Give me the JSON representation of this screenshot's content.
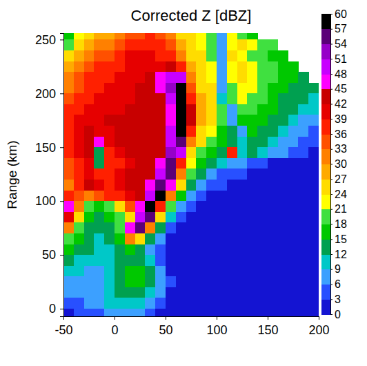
{
  "chart_data": {
    "type": "heatmap",
    "title": "Corrected Z [dBZ]",
    "y_label": "Range (km)",
    "x": [
      -45,
      -35,
      -25,
      -15,
      -5,
      5,
      15,
      25,
      35,
      45,
      55,
      65,
      75,
      85,
      95,
      105,
      115,
      125,
      135,
      145,
      155,
      165,
      175,
      185,
      195
    ],
    "y": [
      255,
      245,
      235,
      225,
      215,
      205,
      195,
      185,
      175,
      165,
      155,
      145,
      135,
      125,
      115,
      105,
      95,
      85,
      75,
      65,
      55,
      45,
      35,
      25,
      15,
      5,
      -5
    ],
    "values": [
      [
        15,
        22,
        25,
        27,
        28,
        30,
        33,
        35,
        36,
        35,
        30,
        26,
        24,
        22,
        20,
        6,
        22,
        20,
        16,
        null,
        null,
        null,
        null,
        null,
        null
      ],
      [
        20,
        24,
        27,
        30,
        30,
        33,
        36,
        38,
        38,
        36,
        33,
        28,
        24,
        22,
        20,
        6,
        22,
        24,
        22,
        20,
        18,
        null,
        null,
        null,
        null
      ],
      [
        24,
        27,
        30,
        33,
        33,
        36,
        39,
        39,
        39,
        38,
        36,
        30,
        26,
        24,
        20,
        7,
        24,
        22,
        20,
        18,
        16,
        15,
        null,
        null,
        null
      ],
      [
        27,
        30,
        33,
        36,
        36,
        38,
        40,
        40,
        40,
        40,
        42,
        36,
        28,
        24,
        22,
        8,
        22,
        24,
        22,
        20,
        18,
        16,
        15,
        null,
        null
      ],
      [
        30,
        33,
        36,
        38,
        38,
        39,
        40,
        41,
        42,
        45,
        50,
        48,
        30,
        25,
        23,
        8,
        21,
        24,
        22,
        20,
        18,
        16,
        15,
        14,
        null
      ],
      [
        30,
        33,
        36,
        38,
        39,
        40,
        40,
        42,
        42,
        45,
        52,
        57,
        33,
        26,
        24,
        6,
        20,
        22,
        21,
        19,
        17,
        15,
        14,
        13,
        12
      ],
      [
        33,
        36,
        38,
        39,
        40,
        40,
        41,
        42,
        42,
        44,
        48,
        57,
        38,
        27,
        24,
        9,
        18,
        21,
        20,
        18,
        16,
        14,
        13,
        12,
        10
      ],
      [
        36,
        38,
        39,
        40,
        40,
        41,
        42,
        42,
        42,
        43,
        46,
        58,
        42,
        28,
        25,
        18,
        8,
        20,
        19,
        17,
        15,
        14,
        12,
        10,
        9
      ],
      [
        38,
        39,
        40,
        40,
        42,
        42,
        42,
        42,
        42,
        42,
        46,
        57,
        42,
        27,
        24,
        18,
        8,
        17,
        16,
        15,
        14,
        12,
        10,
        8,
        6
      ],
      [
        38,
        40,
        42,
        40,
        40,
        42,
        42,
        42,
        42,
        42,
        48,
        57,
        36,
        26,
        22,
        16,
        12,
        6,
        15,
        14,
        12,
        10,
        8,
        6,
        5
      ],
      [
        36,
        40,
        42,
        45,
        40,
        42,
        42,
        42,
        42,
        42,
        50,
        55,
        30,
        24,
        20,
        15,
        12,
        10,
        14,
        12,
        10,
        8,
        6,
        4,
        3
      ],
      [
        36,
        39,
        42,
        12,
        36,
        40,
        42,
        42,
        42,
        44,
        52,
        48,
        26,
        20,
        16,
        14,
        36,
        10,
        12,
        10,
        8,
        6,
        4,
        3,
        2
      ],
      [
        33,
        38,
        40,
        12,
        36,
        38,
        40,
        42,
        42,
        45,
        55,
        36,
        21,
        16,
        12,
        10,
        8,
        6,
        4,
        3,
        2,
        2,
        2,
        1,
        1
      ],
      [
        33,
        38,
        40,
        38,
        38,
        40,
        42,
        42,
        44,
        50,
        56,
        30,
        18,
        12,
        8,
        5,
        4,
        3,
        2,
        2,
        1,
        1,
        1,
        1,
        1
      ],
      [
        30,
        36,
        42,
        40,
        38,
        40,
        42,
        42,
        45,
        55,
        45,
        24,
        14,
        8,
        4,
        3,
        2,
        2,
        1,
        1,
        1,
        1,
        1,
        1,
        1
      ],
      [
        36,
        33,
        30,
        33,
        36,
        38,
        40,
        42,
        50,
        57,
        30,
        16,
        8,
        3,
        2,
        2,
        1,
        1,
        1,
        1,
        1,
        1,
        1,
        1,
        1
      ],
      [
        45,
        30,
        18,
        15,
        20,
        24,
        33,
        45,
        57,
        38,
        18,
        8,
        3,
        2,
        1,
        1,
        1,
        1,
        1,
        1,
        1,
        1,
        1,
        1,
        1
      ],
      [
        40,
        24,
        15,
        12,
        15,
        18,
        24,
        48,
        55,
        24,
        10,
        4,
        2,
        1,
        1,
        1,
        1,
        1,
        1,
        1,
        1,
        1,
        1,
        1,
        1
      ],
      [
        30,
        18,
        12,
        12,
        14,
        18,
        45,
        55,
        30,
        12,
        4,
        2,
        1,
        1,
        1,
        1,
        1,
        1,
        1,
        1,
        1,
        1,
        1,
        1,
        1
      ],
      [
        18,
        15,
        12,
        10,
        12,
        15,
        30,
        24,
        12,
        6,
        2,
        1,
        1,
        1,
        1,
        1,
        1,
        1,
        1,
        1,
        1,
        1,
        1,
        1,
        1
      ],
      [
        15,
        12,
        12,
        10,
        10,
        12,
        15,
        12,
        8,
        4,
        1,
        1,
        1,
        1,
        1,
        1,
        1,
        1,
        1,
        1,
        1,
        1,
        1,
        1,
        1
      ],
      [
        12,
        10,
        9,
        9,
        10,
        12,
        14,
        12,
        9,
        5,
        2,
        1,
        1,
        1,
        1,
        1,
        1,
        1,
        1,
        1,
        1,
        1,
        1,
        1,
        1
      ],
      [
        9,
        9,
        8,
        8,
        10,
        12,
        15,
        15,
        12,
        6,
        2,
        1,
        1,
        1,
        1,
        1,
        1,
        1,
        1,
        1,
        1,
        1,
        1,
        1,
        1
      ],
      [
        8,
        8,
        7,
        8,
        9,
        12,
        15,
        15,
        12,
        8,
        3,
        1,
        1,
        1,
        1,
        1,
        1,
        1,
        1,
        1,
        1,
        1,
        1,
        1,
        1
      ],
      [
        6,
        7,
        6,
        7,
        9,
        12,
        12,
        12,
        10,
        6,
        2,
        1,
        1,
        1,
        1,
        1,
        1,
        1,
        1,
        1,
        1,
        1,
        1,
        1,
        1
      ],
      [
        4,
        5,
        6,
        7,
        9,
        10,
        10,
        9,
        7,
        4,
        2,
        1,
        1,
        1,
        1,
        1,
        1,
        1,
        1,
        1,
        1,
        1,
        1,
        1,
        1
      ],
      [
        2,
        3,
        4,
        5,
        6,
        7,
        7,
        6,
        4,
        2,
        1,
        1,
        1,
        1,
        1,
        1,
        1,
        1,
        1,
        1,
        1,
        1,
        1,
        1,
        1
      ]
    ],
    "xlim": [
      -50,
      200
    ],
    "xticks": [
      -50,
      0,
      50,
      100,
      150,
      200
    ],
    "ylim": [
      -7,
      256
    ],
    "yticks": [
      0,
      50,
      100,
      150,
      200,
      250
    ],
    "colorbar_range": [
      0,
      60
    ],
    "colorbar_ticks": [
      0,
      3,
      6,
      9,
      12,
      15,
      18,
      21,
      24,
      27,
      30,
      33,
      36,
      39,
      42,
      45,
      48,
      51,
      54,
      57,
      60
    ]
  }
}
